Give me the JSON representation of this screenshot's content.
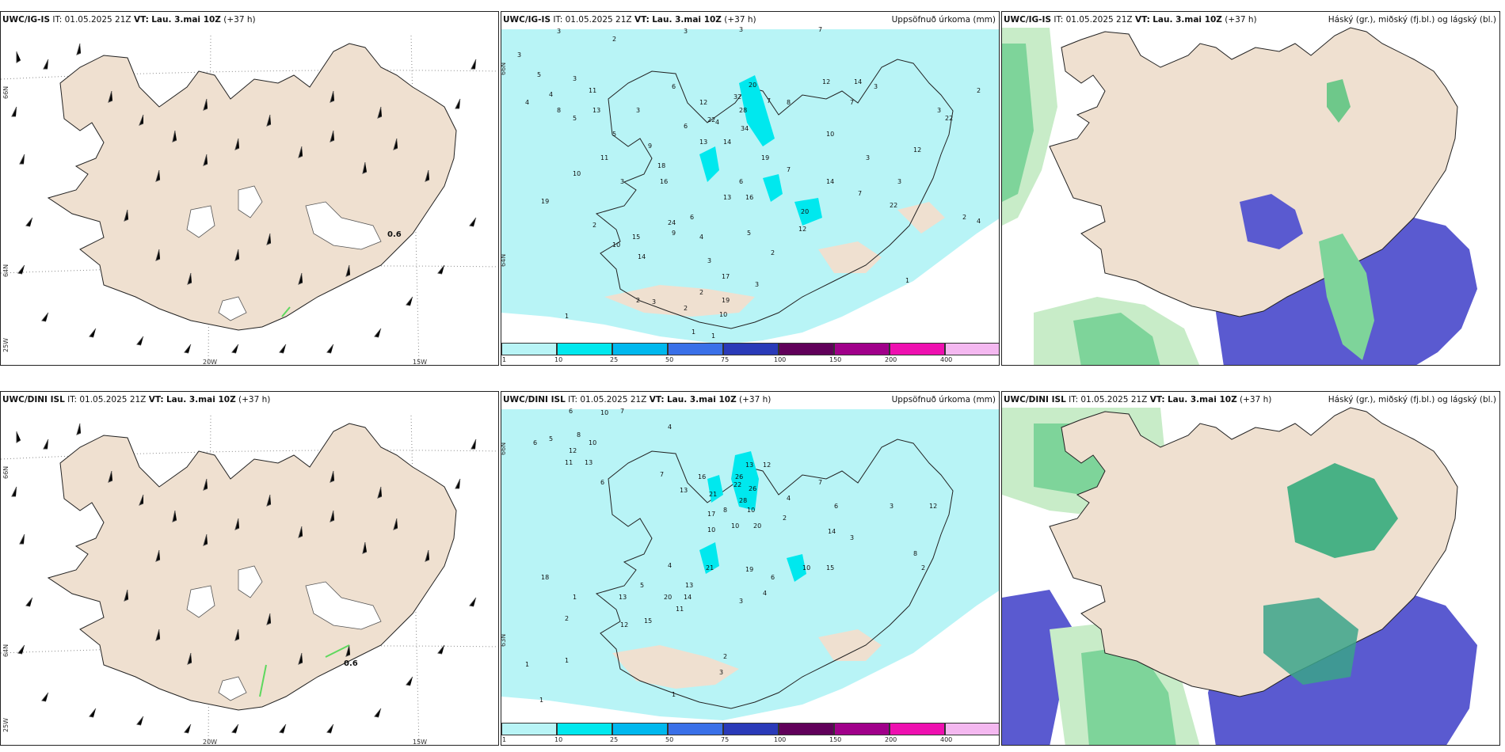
{
  "panels": {
    "top_wind": {
      "model": "UWC/IG-IS",
      "it": "IT: 01.05.2025 21Z",
      "vt_label": "VT:",
      "vt": "Lau. 3.mai 10Z",
      "lead": "(+37 h)",
      "gust_label": "0.6"
    },
    "top_precip": {
      "model": "UWC/IG-IS",
      "it": "IT: 01.05.2025 21Z",
      "vt_label": "VT:",
      "vt": "Lau. 3.mai 10Z",
      "lead": "(+37 h)",
      "right_title": "Uppsöfnuð úrkoma (mm)"
    },
    "top_cloud": {
      "model": "UWC/IG-IS",
      "it": "IT: 01.05.2025 21Z",
      "vt_label": "VT:",
      "vt": "Lau. 3.mai 10Z",
      "lead": "(+37 h)",
      "right_title": "Háský (gr.), miðský (fj.bl.) og lágský (bl.)"
    },
    "bot_wind": {
      "model": "UWC/DINI ISL",
      "it": "IT: 01.05.2025 21Z",
      "vt_label": "VT:",
      "vt": "Lau. 3.mai 10Z",
      "lead": "(+37 h)",
      "gust_label": "0.6"
    },
    "bot_precip": {
      "model": "UWC/DINI ISL",
      "it": "IT: 01.05.2025 21Z",
      "vt_label": "VT:",
      "vt": "Lau. 3.mai 10Z",
      "lead": "(+37 h)",
      "right_title": "Uppsöfnuð úrkoma (mm)"
    },
    "bot_cloud": {
      "model": "UWC/DINI ISL",
      "it": "IT: 01.05.2025 21Z",
      "vt_label": "VT:",
      "vt": "Lau. 3.mai 10Z",
      "lead": "(+37 h)",
      "right_title": "Háský (gr.), miðský (fj.bl.) og lágský (bl.)"
    }
  },
  "axes": {
    "lat66": "66N",
    "lat64": "64N",
    "lat63": "63N",
    "lon20": "20W",
    "lon15": "15W",
    "lon25": "25W"
  },
  "colorbar": {
    "ticks": [
      "1",
      "10",
      "25",
      "50",
      "75",
      "100",
      "150",
      "200",
      "400"
    ],
    "colors": [
      "#b8f4f6",
      "#00e8ee",
      "#00b8ee",
      "#3a70e8",
      "#2a3ab8",
      "#60005a",
      "#a0008a",
      "#ee10b0",
      "#f4b8f0"
    ]
  },
  "precip_top_values": [
    "3",
    "2",
    "3",
    "3",
    "5",
    "3",
    "7",
    "4",
    "4",
    "5",
    "6",
    "3",
    "11",
    "8",
    "13",
    "5",
    "3",
    "12",
    "6",
    "13",
    "20",
    "9",
    "4",
    "22",
    "32",
    "28",
    "7",
    "14",
    "12",
    "14",
    "34",
    "8",
    "10",
    "7",
    "3",
    "16",
    "19",
    "13",
    "6",
    "18",
    "19",
    "7",
    "12",
    "22",
    "3",
    "10",
    "11",
    "3",
    "3",
    "7",
    "14",
    "22",
    "20",
    "16",
    "6",
    "15",
    "9",
    "4",
    "12",
    "2",
    "24",
    "5",
    "2",
    "10",
    "17",
    "3",
    "2",
    "3",
    "14",
    "2",
    "3",
    "2",
    "1",
    "1",
    "1",
    "3",
    "2",
    "19",
    "10",
    "4",
    "2",
    "1"
  ],
  "precip_bot_values": [
    "6",
    "10",
    "7",
    "6",
    "5",
    "8",
    "12",
    "10",
    "11",
    "13",
    "4",
    "6",
    "13",
    "7",
    "16",
    "13",
    "12",
    "26",
    "22",
    "26",
    "21",
    "28",
    "8",
    "10",
    "4",
    "7",
    "2",
    "17",
    "10",
    "10",
    "20",
    "14",
    "6",
    "3",
    "3",
    "19",
    "21",
    "13",
    "4",
    "20",
    "14",
    "11",
    "1",
    "13",
    "5",
    "15",
    "18",
    "2",
    "12",
    "3",
    "10",
    "6",
    "4",
    "15",
    "2",
    "12",
    "8",
    "2",
    "1",
    "1",
    "3",
    "1",
    "1"
  ]
}
